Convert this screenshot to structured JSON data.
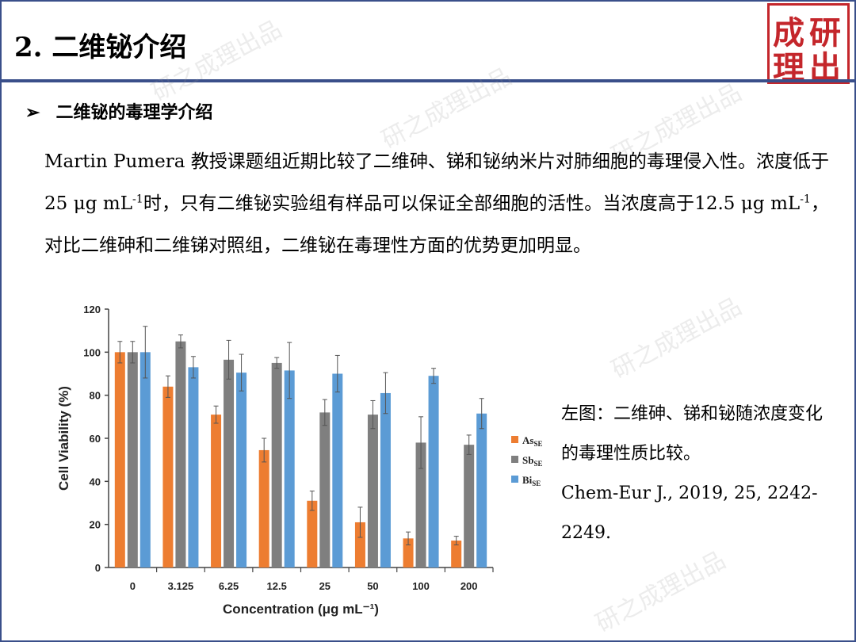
{
  "header": {
    "title": "2. 二维铋介绍",
    "seal_chars": [
      "成",
      "研",
      "理",
      "出"
    ]
  },
  "section": {
    "bullet_arrow": "➢",
    "bullet_text": "二维铋的毒理学介绍",
    "para_part1": "Martin Pumera 教授课题组近期比较了二维砷、锑和铋纳米片对肺细胞的毒理侵入性。浓度低于25 μg mL",
    "para_sup1": "-1",
    "para_part2": "时，只有二维铋实验组有样品可以保证全部细胞的活性。当浓度高于12.5 μg mL",
    "para_sup2": "-1",
    "para_part3": "，对比二维砷和二维锑对照组，二维铋在毒理性方面的优势更加明显。"
  },
  "caption": {
    "line1": "左图：二维砷、锑和铋随浓度变化的毒理性质比较。",
    "line2": "Chem-Eur J., 2019, 25, 2242-2249."
  },
  "watermark_text": "研之成理出品",
  "colors": {
    "as": "#ed7d31",
    "sb": "#7f7f7f",
    "bi": "#5b9bd5",
    "accent": "#3a4f8a",
    "seal": "#c4262b"
  },
  "chart_data": {
    "type": "bar",
    "xlabel": "Concentration (μg mL⁻¹)",
    "ylabel": "Cell Viability (%)",
    "ylim": [
      0,
      120
    ],
    "yticks": [
      0,
      20,
      40,
      60,
      80,
      100,
      120
    ],
    "categories": [
      "0",
      "3.125",
      "6.25",
      "12.5",
      "25",
      "50",
      "100",
      "200"
    ],
    "legend_position": "right",
    "series": [
      {
        "name": "As",
        "sub": "SE",
        "color": "#ed7d31",
        "values": [
          100,
          84,
          71,
          54.5,
          31,
          21,
          13.5,
          12.5
        ],
        "errors": [
          5,
          5,
          4,
          5.5,
          4.5,
          7,
          3,
          2
        ]
      },
      {
        "name": "Sb",
        "sub": "SE",
        "color": "#7f7f7f",
        "values": [
          100,
          105,
          96.5,
          95,
          72,
          71,
          58,
          57
        ],
        "errors": [
          5,
          3,
          9,
          2.5,
          6,
          6.5,
          12,
          4.5
        ]
      },
      {
        "name": "Bi",
        "sub": "SE",
        "color": "#5b9bd5",
        "values": [
          100,
          93,
          90.5,
          91.5,
          90,
          81,
          89,
          71.5
        ],
        "errors": [
          12,
          5,
          8.5,
          13,
          8.5,
          9.5,
          3.5,
          7
        ]
      }
    ]
  }
}
